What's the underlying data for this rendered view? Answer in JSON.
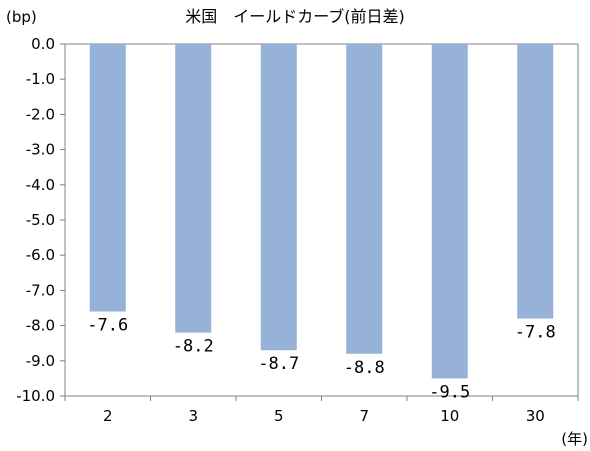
{
  "chart_data": {
    "type": "bar",
    "title": "米国　イールドカーブ(前日差)",
    "y_unit": "(bp)",
    "x_unit": "(年)",
    "categories": [
      "2",
      "3",
      "5",
      "7",
      "10",
      "30"
    ],
    "values": [
      -7.6,
      -8.2,
      -8.7,
      -8.8,
      -9.5,
      -7.8
    ],
    "data_labels": [
      "-7.6",
      "-8.2",
      "-8.7",
      "-8.8",
      "-9.5",
      "-7.8"
    ],
    "y_ticks": [
      0,
      -1,
      -2,
      -3,
      -4,
      -5,
      -6,
      -7,
      -8,
      -9,
      -10
    ],
    "y_tick_labels": [
      "0.0",
      "-1.0",
      "-2.0",
      "-3.0",
      "-4.0",
      "-5.0",
      "-6.0",
      "-7.0",
      "-8.0",
      "-9.0",
      "-10.0"
    ],
    "ylim": [
      -10,
      0
    ],
    "grid": false,
    "legend": "none",
    "bar_color": "#96b2d8",
    "axis_color": "#808080"
  }
}
